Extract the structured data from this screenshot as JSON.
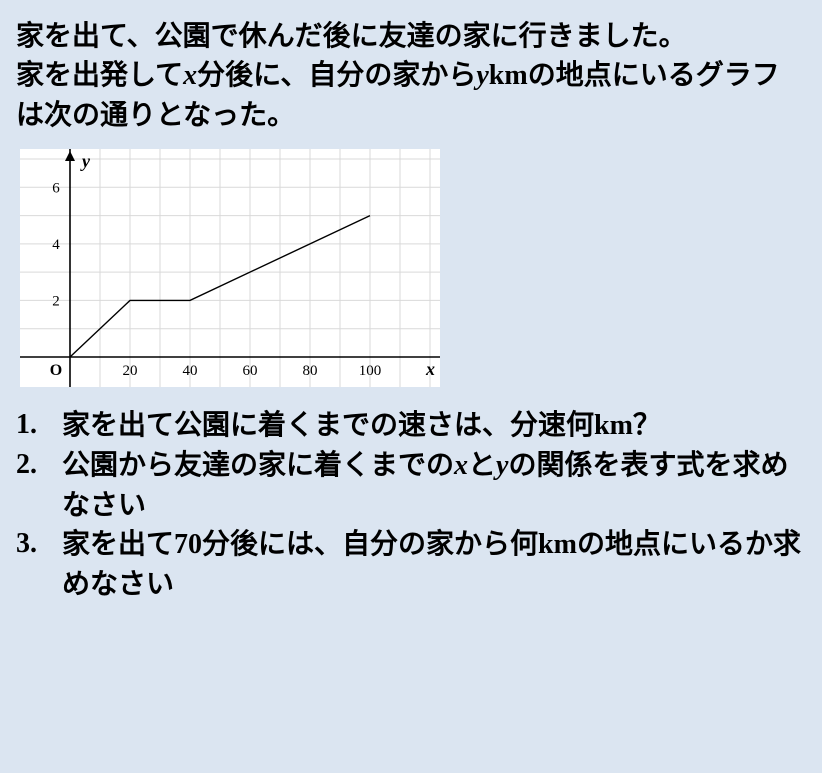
{
  "problem": {
    "line1": "家を出て、公園で休んだ後に友達の家に行きました。",
    "line2_a": "家を出発して",
    "line2_var1": "x",
    "line2_b": "分後に、自分の家から",
    "line2_var2": "y",
    "line2_unit": "km",
    "line2_c": "の地点にいるグラフは次の通りとなった。"
  },
  "chart": {
    "type": "line",
    "background_color": "#ffffff",
    "grid_color": "#d9d9d9",
    "axis_color": "#000000",
    "line_color": "#000000",
    "x_label": "x",
    "y_label": "y",
    "origin_label": "O",
    "label_fontsize": 18,
    "tick_fontsize": 15,
    "x_ticks": [
      20,
      40,
      60,
      80,
      100
    ],
    "y_ticks": [
      2,
      4,
      6
    ],
    "xlim": [
      0,
      120
    ],
    "ylim": [
      0,
      7
    ],
    "x_grid_step": 10,
    "y_grid_step": 1,
    "points": [
      {
        "x": 0,
        "y": 0
      },
      {
        "x": 20,
        "y": 2
      },
      {
        "x": 40,
        "y": 2
      },
      {
        "x": 100,
        "y": 5
      }
    ],
    "line_width": 1.4
  },
  "questions": {
    "q1_a": "家を出て公園に着くまでの速さは、分速何",
    "q1_unit": "km",
    "q1_b": "？",
    "q2_a": "公園から友達の家に着くまでの",
    "q2_var1": "x",
    "q2_b": "と",
    "q2_var2": "y",
    "q2_c": "の関係を表す式を求めなさい",
    "q3_a": "家を出て",
    "q3_num": "70",
    "q3_b": "分後には、自分の家から何",
    "q3_unit": "km",
    "q3_c": "の地点にいるか求めなさい"
  }
}
